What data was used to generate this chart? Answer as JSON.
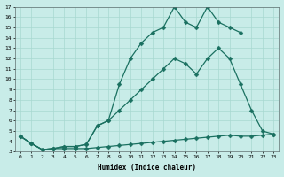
{
  "xlabel": "Humidex (Indice chaleur)",
  "xlim": [
    -0.5,
    23.5
  ],
  "ylim": [
    3,
    17
  ],
  "xticks": [
    0,
    1,
    2,
    3,
    4,
    5,
    6,
    7,
    8,
    9,
    10,
    11,
    12,
    13,
    14,
    15,
    16,
    17,
    18,
    19,
    20,
    21,
    22,
    23
  ],
  "yticks": [
    3,
    4,
    5,
    6,
    7,
    8,
    9,
    10,
    11,
    12,
    13,
    14,
    15,
    16,
    17
  ],
  "background_color": "#c8ece8",
  "grid_color": "#a8d8d0",
  "line_color": "#1a7060",
  "line1_x": [
    0,
    1,
    2,
    3,
    4,
    5,
    6,
    7,
    8,
    9,
    10,
    11,
    12,
    13,
    14,
    15,
    16,
    17,
    18,
    19,
    20,
    21,
    22,
    23
  ],
  "line1_y": [
    4.5,
    3.8,
    3.2,
    3.3,
    3.3,
    3.3,
    3.3,
    3.4,
    3.5,
    3.6,
    3.7,
    3.8,
    3.9,
    4.0,
    4.1,
    4.2,
    4.3,
    4.4,
    4.5,
    4.6,
    4.5,
    4.5,
    4.6,
    4.7
  ],
  "line2_x": [
    0,
    1,
    2,
    3,
    4,
    5,
    6,
    7,
    8,
    9,
    10,
    11,
    12,
    13,
    14,
    15,
    16,
    17,
    18,
    19,
    20,
    21,
    22,
    23
  ],
  "line2_y": [
    4.5,
    3.8,
    3.2,
    3.3,
    3.5,
    3.5,
    3.7,
    5.5,
    6.0,
    7.0,
    8.0,
    9.0,
    10.0,
    11.0,
    12.0,
    11.5,
    10.5,
    12.0,
    13.0,
    12.0,
    9.5,
    7.0,
    5.0,
    4.7
  ],
  "line3_x": [
    0,
    1,
    2,
    3,
    4,
    5,
    6,
    7,
    8,
    9,
    10,
    11,
    12,
    13,
    14,
    15,
    16,
    17,
    18,
    19,
    20
  ],
  "line3_y": [
    4.5,
    3.8,
    3.2,
    3.3,
    3.5,
    3.5,
    3.7,
    5.5,
    6.0,
    9.5,
    12.0,
    13.5,
    14.5,
    15.0,
    17.0,
    15.5,
    15.0,
    17.0,
    15.5,
    15.0,
    14.5
  ]
}
